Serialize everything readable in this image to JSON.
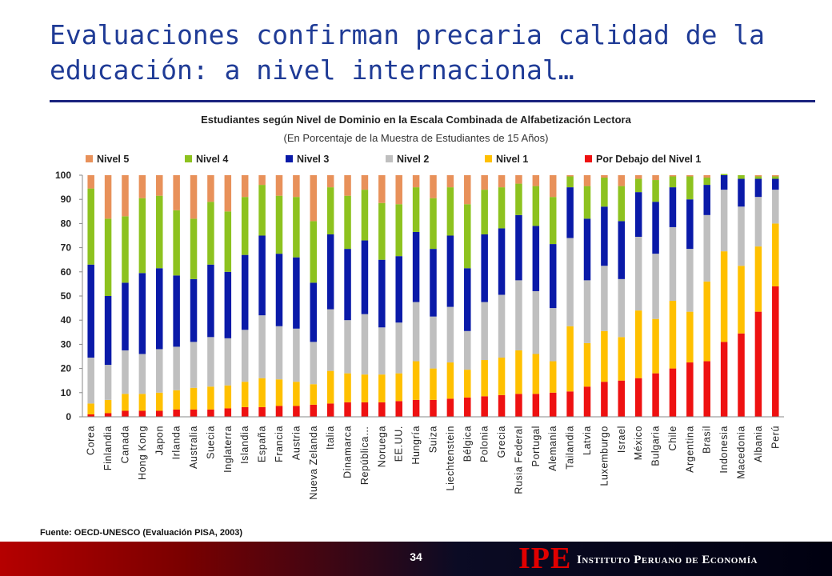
{
  "slide": {
    "title": "Evaluaciones confirman precaria calidad de la educación: a nivel internacional…",
    "source": "Fuente: OECD-UNESCO (Evaluación PISA, 2003)",
    "page_number": "34",
    "logo_mark": "IPE",
    "logo_name": "Instituto Peruano de Economía"
  },
  "colors": {
    "title": "#1f3b96",
    "rule": "#1a237e",
    "logo_red": "#e00000"
  },
  "chart_data": {
    "type": "bar",
    "stacked": true,
    "title": "Estudiantes según Nivel de Dominio en la Escala Combinada de Alfabetización Lectora",
    "subtitle": "(En Porcentaje de la Muestra de Estudiantes de 15 Años)",
    "ylim": [
      0,
      100
    ],
    "yticks": [
      0,
      10,
      20,
      30,
      40,
      50,
      60,
      70,
      80,
      90,
      100
    ],
    "legend_position": "top",
    "grid": false,
    "categories": [
      "Corea",
      "Finlandia",
      "Canada",
      "Hong Kong",
      "Japon",
      "Irlanda",
      "Australia",
      "Suecia",
      "Inglaterra",
      "Islandia",
      "España",
      "Francia",
      "Austria",
      "Nueva Zelanda",
      "Italia",
      "Dinamarca",
      "República…",
      "Noruega",
      "EE.UU.",
      "Hungría",
      "Suiza",
      "Liechtenstein",
      "Bélgica",
      "Polonia",
      "Grecia",
      "Rusia Federal",
      "Portugal",
      "Alemania",
      "Tailandia",
      "Latvia",
      "Luxemburgo",
      "Israel",
      "México",
      "Bulgaria",
      "Chile",
      "Argentina",
      "Brasil",
      "Indonesia",
      "Macedonia",
      "Albania",
      "Perú"
    ],
    "series": [
      {
        "name": "Por Debajo del Nivel 1",
        "color": "#ee1111",
        "values": [
          1,
          1.5,
          2.5,
          2.5,
          2.5,
          3,
          3,
          3,
          3.5,
          4,
          4,
          4.5,
          4.5,
          5,
          5.5,
          6,
          6,
          6,
          6.5,
          7,
          7,
          7.5,
          8,
          8.5,
          9,
          9.5,
          9.5,
          10,
          10.5,
          12.5,
          14.5,
          15,
          16,
          18,
          20,
          22.5,
          23,
          31,
          34.5,
          43.5,
          54
        ]
      },
      {
        "name": "Nivel 1",
        "color": "#ffc000",
        "values": [
          4.5,
          5.5,
          7,
          7,
          7.5,
          8,
          9,
          9.5,
          9.5,
          10.5,
          12,
          11,
          10,
          8.5,
          13.5,
          12,
          11.5,
          11.5,
          11.5,
          16,
          13,
          15,
          11.5,
          15,
          15.5,
          18,
          16.5,
          13,
          27,
          18,
          21,
          18,
          28,
          22.5,
          28,
          21,
          33,
          37.5,
          28,
          27,
          26
        ]
      },
      {
        "name": "Nivel 2",
        "color": "#bfbfbf",
        "values": [
          19,
          14.5,
          18,
          16.5,
          18,
          18,
          19,
          20.5,
          19.5,
          21.5,
          26,
          22,
          22,
          17.5,
          25.5,
          22,
          25,
          19.5,
          21,
          24.5,
          21.5,
          23,
          16,
          24,
          26,
          29,
          26,
          22,
          36.5,
          26,
          27,
          24,
          30.5,
          27,
          30.5,
          26,
          27.5,
          25.5,
          24.5,
          20.5,
          14
        ]
      },
      {
        "name": "Nivel 3",
        "color": "#0a1aa8",
        "values": [
          38.5,
          28.5,
          28,
          33.5,
          33.5,
          29.5,
          26,
          30,
          27.5,
          31,
          33,
          30,
          29.5,
          24.5,
          31,
          29.5,
          30.5,
          28,
          27.5,
          29,
          28,
          29.5,
          26,
          28,
          27.5,
          27,
          27,
          26.5,
          21,
          25.5,
          24.5,
          24,
          18.5,
          21.5,
          16.5,
          20.5,
          12.5,
          6,
          11.5,
          7.5,
          4.5
        ]
      },
      {
        "name": "Nivel 4",
        "color": "#8dc21f",
        "values": [
          31.5,
          32,
          27.5,
          31,
          30,
          27,
          25,
          26,
          25,
          24,
          21,
          24,
          25,
          25.5,
          19.5,
          22,
          21,
          23.5,
          21.5,
          18.5,
          21,
          20,
          26.5,
          18.5,
          17,
          13,
          16.5,
          19.5,
          4.5,
          13.5,
          12,
          14.5,
          5.5,
          9,
          4.5,
          9.5,
          3,
          0.5,
          1.5,
          1,
          1
        ]
      },
      {
        "name": "Nivel 5",
        "color": "#e8915a",
        "values": [
          5.5,
          18,
          17,
          9.5,
          8.5,
          14.5,
          18,
          11,
          15,
          9,
          4,
          8.5,
          9,
          19,
          5,
          8.5,
          6,
          11.5,
          12,
          5,
          9.5,
          5,
          12,
          6,
          5,
          3.5,
          4.5,
          9,
          0.5,
          4.5,
          1,
          4.5,
          1.5,
          2,
          0.5,
          0.5,
          1,
          0,
          0,
          0.5,
          0.5
        ]
      }
    ],
    "legend_order": [
      "Nivel 5",
      "Nivel 4",
      "Nivel 3",
      "Nivel 2",
      "Nivel 1",
      "Por Debajo del Nivel 1"
    ]
  }
}
